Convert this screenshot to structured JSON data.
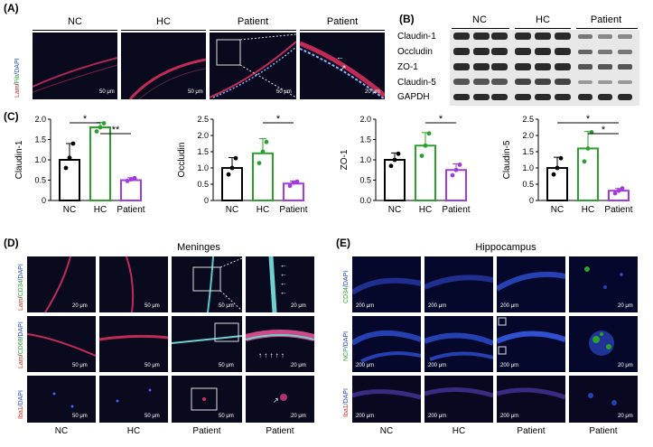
{
  "panelA": {
    "label": "(A)",
    "headers": [
      "NC",
      "HC",
      "Patient",
      "Patient"
    ],
    "stain": [
      "Lam",
      "/",
      "Fib",
      "/DAPI"
    ],
    "scales": [
      "50 μm",
      "50 μm",
      "50 μm",
      "20 μm"
    ]
  },
  "panelB": {
    "label": "(B)",
    "headers": [
      "NC",
      "HC",
      "Patient"
    ],
    "rows": [
      "Claudin-1",
      "Occludin",
      "ZO-1",
      "Claudin-5",
      "GAPDH"
    ]
  },
  "panelC": {
    "label": "(C)"
  },
  "chart_data": [
    {
      "type": "bar",
      "categories": [
        "NC",
        "HC",
        "Patient"
      ],
      "values": [
        1.0,
        1.8,
        0.5
      ],
      "errors": [
        0.4,
        0.12,
        0.06
      ],
      "points": [
        [
          0.8,
          1.05,
          1.4
        ],
        [
          1.7,
          1.8,
          1.9
        ],
        [
          0.48,
          0.52,
          0.55
        ]
      ],
      "ylabel": "Claudin-1",
      "ylim": [
        0,
        2.0
      ],
      "yticks": [
        "0",
        "0.5",
        "1.0",
        "1.5",
        "2.0"
      ],
      "colors": [
        "#000000",
        "#2ca02c",
        "#a23bdb"
      ],
      "significance": [
        {
          "from": 0,
          "to": 1,
          "mark": "*"
        },
        {
          "from": 1,
          "to": 2,
          "mark": "**"
        }
      ]
    },
    {
      "type": "bar",
      "categories": [
        "NC",
        "HC",
        "Patient"
      ],
      "values": [
        1.0,
        1.45,
        0.52
      ],
      "errors": [
        0.32,
        0.45,
        0.08
      ],
      "points": [
        [
          0.8,
          1.0,
          1.3
        ],
        [
          1.15,
          1.5,
          1.8
        ],
        [
          0.45,
          0.55,
          0.58
        ]
      ],
      "ylabel": "Occludin",
      "ylim": [
        0,
        2.5
      ],
      "yticks": [
        "0",
        "0.5",
        "1.0",
        "1.5",
        "2.0",
        "2.5"
      ],
      "colors": [
        "#000000",
        "#2ca02c",
        "#a23bdb"
      ],
      "significance": [
        {
          "from": 1,
          "to": 2,
          "mark": "*"
        }
      ]
    },
    {
      "type": "bar",
      "categories": [
        "NC",
        "HC",
        "Patient"
      ],
      "values": [
        1.0,
        1.35,
        0.75
      ],
      "errors": [
        0.17,
        0.32,
        0.15
      ],
      "points": [
        [
          0.85,
          1.0,
          1.15
        ],
        [
          1.1,
          1.35,
          1.65
        ],
        [
          0.62,
          0.75,
          0.88
        ]
      ],
      "ylabel": "ZO-1",
      "ylim": [
        0,
        2.0
      ],
      "yticks": [
        "0.0",
        "0.5",
        "1.0",
        "1.5",
        "2.0"
      ],
      "colors": [
        "#000000",
        "#2ca02c",
        "#a23bdb"
      ],
      "significance": [
        {
          "from": 1,
          "to": 2,
          "mark": "*"
        }
      ]
    },
    {
      "type": "bar",
      "categories": [
        "NC",
        "HC",
        "Patient"
      ],
      "values": [
        1.0,
        1.6,
        0.3
      ],
      "errors": [
        0.33,
        0.52,
        0.07
      ],
      "points": [
        [
          0.8,
          1.0,
          1.3
        ],
        [
          1.2,
          1.6,
          2.1
        ],
        [
          0.22,
          0.3,
          0.37
        ]
      ],
      "ylabel": "Claudin-5",
      "ylim": [
        0,
        2.5
      ],
      "yticks": [
        "0",
        "0.5",
        "1.0",
        "1.5",
        "2.0",
        "2.5"
      ],
      "colors": [
        "#000000",
        "#2ca02c",
        "#a23bdb"
      ],
      "significance": [
        {
          "from": 0,
          "to": 2,
          "mark": "*"
        },
        {
          "from": 1,
          "to": 2,
          "mark": "*"
        }
      ]
    }
  ],
  "panelD": {
    "label": "(D)",
    "title": "Meninges",
    "rowlabels": [
      [
        "Lam",
        "/",
        "CD34",
        "/DAPI"
      ],
      [
        "Lam",
        "/",
        "CD68",
        "/DAPI"
      ],
      [
        "Iba1",
        "/DAPI",
        "",
        ""
      ]
    ],
    "scales": [
      "20 μm",
      "50 μm",
      "50 μm",
      "20 μm",
      "50 μm",
      "50 μm",
      "50 μm",
      "20 μm",
      "50 μm",
      "50 μm",
      "50 μm",
      "20 μm"
    ],
    "bottom": [
      "NC",
      "HC",
      "Patient",
      "Patient"
    ]
  },
  "panelE": {
    "label": "(E)",
    "title": "Hippocampus",
    "rowlabels": [
      [
        "",
        "CD34",
        "/DAPI"
      ],
      [
        "",
        "NCP",
        "/DAPI"
      ],
      [
        "Iba1",
        "",
        "/DAPI"
      ]
    ],
    "scales": [
      "200 μm",
      "200 μm",
      "200 μm",
      "20 μm",
      "200 μm",
      "200 μm",
      "200 μm",
      "20 μm",
      "200 μm",
      "200 μm",
      "200 μm",
      "20 μm"
    ],
    "bottom": [
      "NC",
      "HC",
      "Patient",
      "Patient"
    ]
  }
}
